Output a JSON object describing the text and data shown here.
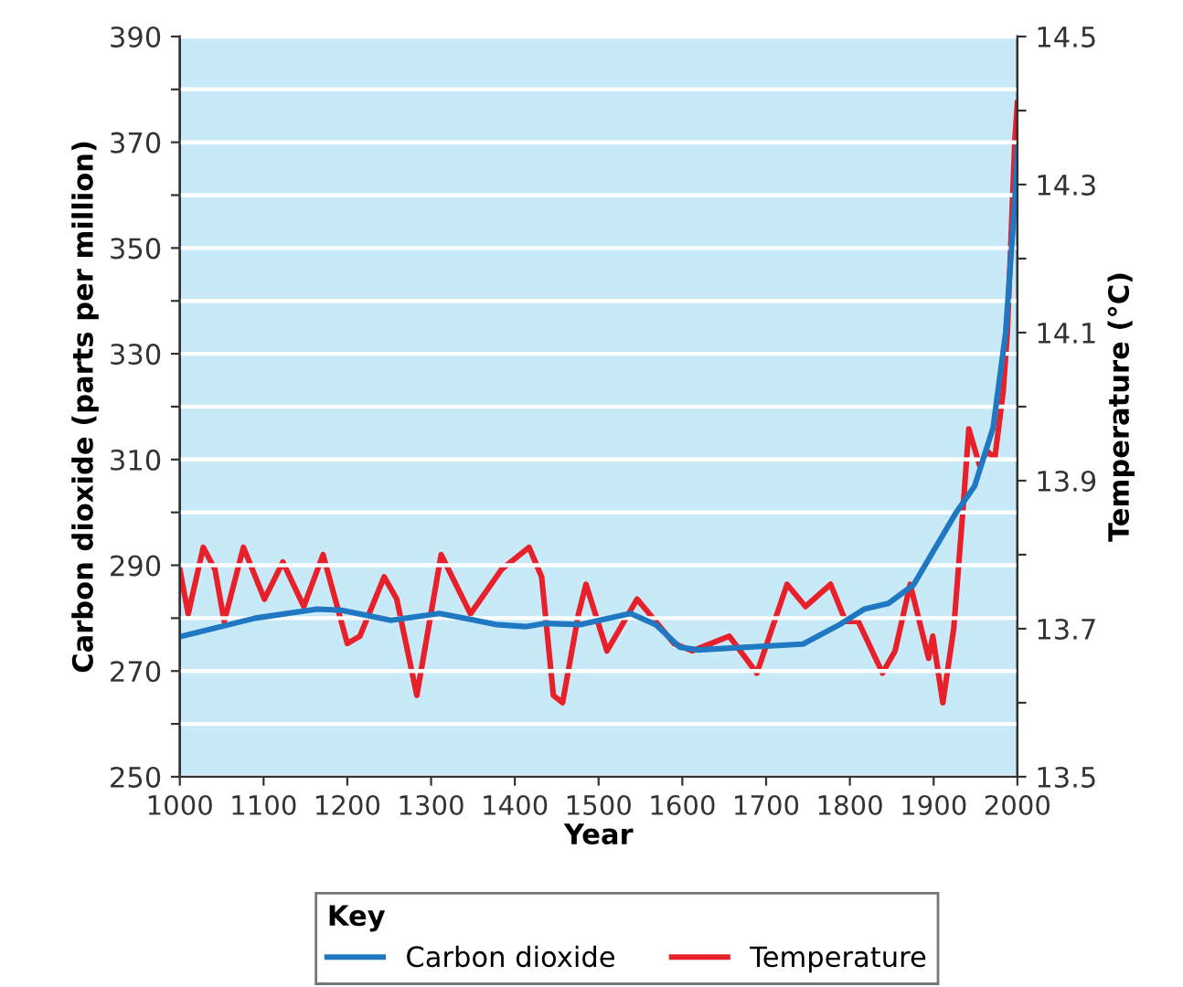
{
  "chart_data": {
    "type": "line",
    "xlabel": "Year",
    "ylabel": "Carbon dioxide (parts per million)",
    "y2label": "Temperature (°C)",
    "legend_title": "Key",
    "legend": "bottom",
    "grid": "y",
    "marker": "none",
    "line_style": "solid",
    "xlim": [
      1000,
      2000
    ],
    "xticks": [
      1000,
      1100,
      1200,
      1300,
      1400,
      1500,
      1600,
      1700,
      1800,
      1900,
      2000
    ],
    "ylim": [
      250,
      390
    ],
    "yticks": [
      250,
      {
        "value": 260,
        "label": null
      },
      270,
      {
        "value": 280,
        "label": null
      },
      290,
      {
        "value": 300,
        "label": null
      },
      310,
      {
        "value": 320,
        "label": null
      },
      330,
      {
        "value": 340,
        "label": null
      },
      350,
      {
        "value": 360,
        "label": null
      },
      370,
      {
        "value": 380,
        "label": null
      },
      390
    ],
    "y2lim": [
      13.5,
      14.5
    ],
    "y2ticks": [
      13.5,
      {
        "value": 13.6,
        "label": null
      },
      13.7,
      {
        "value": 13.8,
        "label": null
      },
      13.9,
      {
        "value": 14.0,
        "label": null
      },
      14.1,
      {
        "value": 14.2,
        "label": null
      },
      14.3,
      {
        "value": 14.4,
        "label": null
      },
      14.5
    ],
    "series": [
      {
        "name": "Carbon dioxide",
        "color": "#1f78c1",
        "x": [
          1000,
          1090,
          1164,
          1193,
          1252,
          1310,
          1340,
          1377,
          1413,
          1435,
          1479,
          1538,
          1568,
          1597,
          1619,
          1744,
          1788,
          1817,
          1846,
          1876,
          1927,
          1949,
          1971,
          1986,
          1997,
          2000
        ],
        "values": [
          276.5,
          280,
          281.7,
          281.5,
          279.6,
          280.9,
          280,
          278.8,
          278.4,
          279,
          278.8,
          280.9,
          278.8,
          274.5,
          274,
          275.1,
          278.8,
          281.7,
          282.8,
          286.3,
          300,
          305,
          316,
          334,
          359,
          369
        ]
      },
      {
        "name": "Temperature",
        "color": "#e8202a",
        "axis": "y2",
        "x": [
          1000,
          1010,
          1028,
          1042,
          1053,
          1076,
          1101,
          1123,
          1148,
          1171,
          1200,
          1215,
          1244,
          1259,
          1283,
          1312,
          1347,
          1384,
          1417,
          1432,
          1446,
          1457,
          1476,
          1485,
          1510,
          1546,
          1568,
          1590,
          1612,
          1656,
          1689,
          1725,
          1747,
          1777,
          1795,
          1810,
          1839,
          1854,
          1872,
          1894,
          1899,
          1911,
          1924,
          1935,
          1942,
          1955,
          1964,
          1973,
          1983,
          1988,
          1997,
          2000
        ],
        "values": [
          13.78,
          13.72,
          13.81,
          13.78,
          13.71,
          13.81,
          13.74,
          13.79,
          13.73,
          13.8,
          13.68,
          13.69,
          13.77,
          13.74,
          13.61,
          13.8,
          13.72,
          13.78,
          13.81,
          13.77,
          13.61,
          13.6,
          13.72,
          13.76,
          13.67,
          13.74,
          13.71,
          13.68,
          13.67,
          13.69,
          13.64,
          13.76,
          13.73,
          13.76,
          13.71,
          13.71,
          13.64,
          13.67,
          13.76,
          13.66,
          13.69,
          13.6,
          13.7,
          13.86,
          13.97,
          13.92,
          13.94,
          13.93,
          14.02,
          14.1,
          14.36,
          14.41
        ]
      }
    ]
  }
}
